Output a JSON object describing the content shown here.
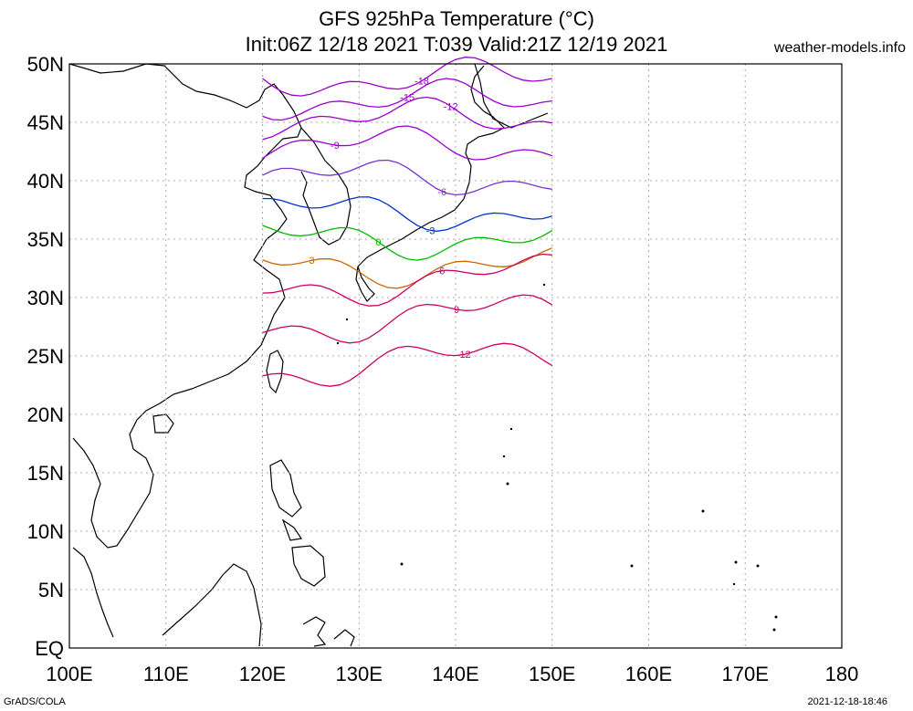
{
  "title": {
    "line1": "GFS 925hPa Temperature (°C)",
    "line2": "Init:06Z 12/18 2021 T:039 Valid:21Z 12/19 2021"
  },
  "site": "weather-models.info",
  "footer": {
    "left": "GrADS/COLA",
    "right": "2021-12-18-18:46"
  },
  "axes": {
    "x_labels": [
      "100E",
      "110E",
      "120E",
      "130E",
      "140E",
      "150E",
      "160E",
      "170E",
      "180"
    ],
    "y_labels": [
      "EQ",
      "5N",
      "10N",
      "15N",
      "20N",
      "25N",
      "30N",
      "35N",
      "40N",
      "45N",
      "50N"
    ],
    "lon_range": [
      100,
      180
    ],
    "lat_range": [
      0,
      50
    ],
    "grid": true
  },
  "contour_domain": {
    "lon": [
      120,
      150
    ],
    "lat": [
      20,
      50
    ]
  },
  "contours": [
    {
      "value": -18,
      "label": "-18",
      "color": "#9900cc"
    },
    {
      "value": -15,
      "label": "-15",
      "color": "#9900cc"
    },
    {
      "value": -12,
      "label": "-12",
      "color": "#9900cc"
    },
    {
      "value": -9,
      "label": "-9",
      "color": "#9900cc"
    },
    {
      "value": -6,
      "label": "-6",
      "color": "#7733cc"
    },
    {
      "value": -3,
      "label": "-3",
      "color": "#0033cc"
    },
    {
      "value": 0,
      "label": "0",
      "color": "#00bb00"
    },
    {
      "value": 3,
      "label": "3",
      "color": "#cc6600"
    },
    {
      "value": 6,
      "label": "6",
      "color": "#cc0066"
    },
    {
      "value": 9,
      "label": "9",
      "color": "#cc0066"
    },
    {
      "value": 12,
      "label": "12",
      "color": "#cc0066"
    }
  ],
  "colors": {
    "coast": "#000000",
    "grid": "#aaaaaa"
  }
}
